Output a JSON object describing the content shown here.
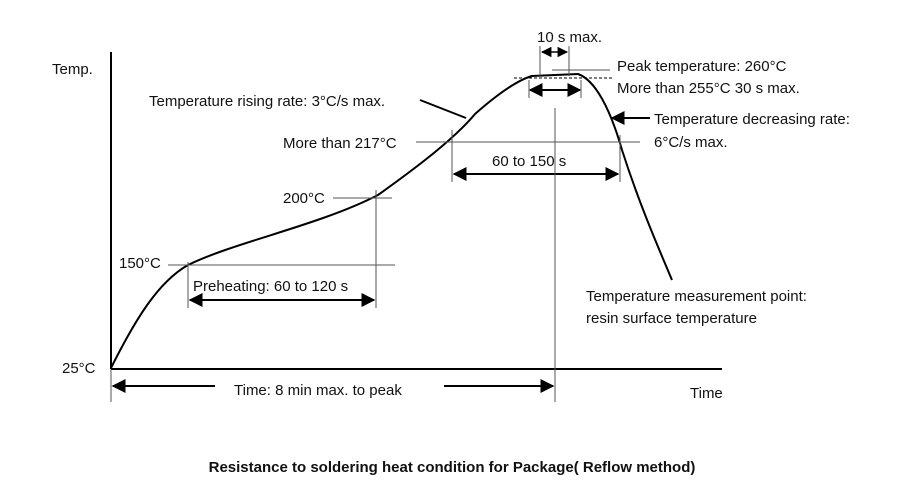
{
  "axis": {
    "y_label": "Temp.",
    "x_label": "Time"
  },
  "temperatures": {
    "t25": "25°C",
    "t150": "150°C",
    "t200": "200°C",
    "t217": "More than 217°C"
  },
  "annotations": {
    "rising_rate": "Temperature rising rate: 3°C/s max.",
    "peak_time": "10 s max.",
    "peak_temp": "Peak temperature: 260°C",
    "above_255": "More than 255°C   30 s max.",
    "decreasing_rate_1": "Temperature decreasing rate:",
    "decreasing_rate_2": "6°C/s max.",
    "above_217_time": "60 to 150 s",
    "preheating": "Preheating: 60 to 120 s",
    "measurement_1": "Temperature measurement point:",
    "measurement_2": "resin surface temperature",
    "total_time": "Time: 8 min max. to peak"
  },
  "caption": "Resistance to soldering heat condition for Package( Reflow method)"
}
